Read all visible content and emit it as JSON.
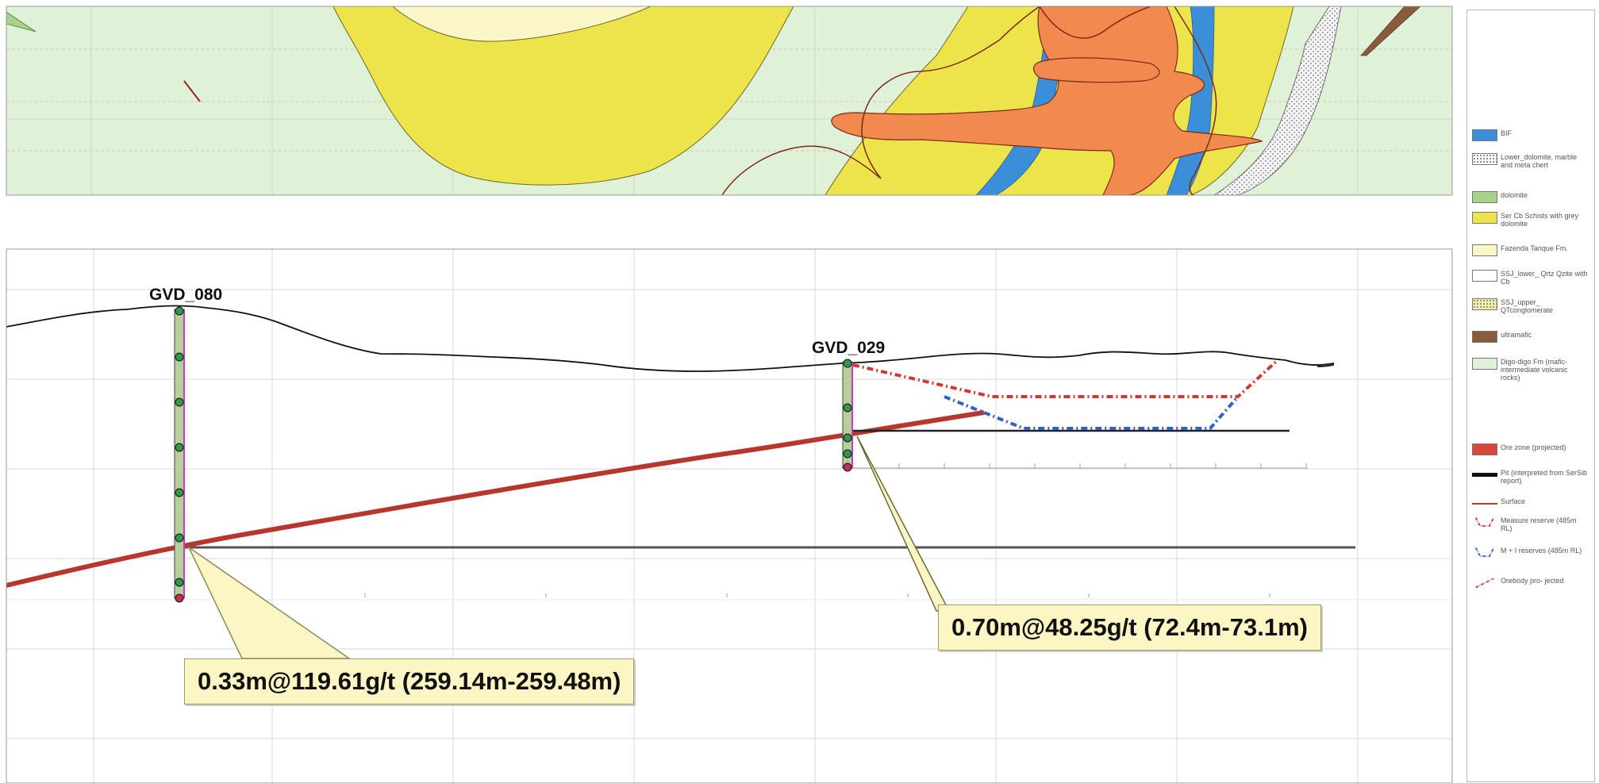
{
  "drillholes": [
    {
      "id": "GVD_080"
    },
    {
      "id": "GVD_029"
    }
  ],
  "intercepts": [
    {
      "text": "0.33m@119.61g/t (259.14m-259.48m)"
    },
    {
      "text": "0.70m@48.25g/t (72.4m-73.1m)"
    }
  ],
  "legend": {
    "items": [
      {
        "label": "BIF",
        "color": "#3a8fd8",
        "kind": "box"
      },
      {
        "label": "Lower_dolomite, marble and meta chert",
        "color": "#ffffff",
        "kind": "dotted"
      },
      {
        "label": "dolomite",
        "color": "#a8d18a",
        "kind": "box"
      },
      {
        "label": "Ser Cb Schists with grey dolomite",
        "color": "#ede34a",
        "kind": "box"
      },
      {
        "label": "Fazenda Tanque Fm.",
        "color": "#fbf6c8",
        "kind": "box"
      },
      {
        "label": "SSJ_lower_ Qrtz Qzite with Cb",
        "color": "#ffffff",
        "kind": "box"
      },
      {
        "label": "SSJ_upper_ QTconglomerate",
        "color": "#f4efaa",
        "kind": "dotted"
      },
      {
        "label": "ultramafic",
        "color": "#8a5a3c",
        "kind": "box"
      },
      {
        "label": "Digo-digo Fm (mafic-intermediate volcanic rocks)",
        "color": "#dff2d8",
        "kind": "box"
      },
      {
        "label": "Ore zone (projected)",
        "color": "#d8473a",
        "kind": "box"
      },
      {
        "label": "Pit (interpreted from SerSib report)",
        "color": "#111111",
        "kind": "bar"
      },
      {
        "label": "Surface",
        "color": "#c0392b",
        "kind": "line"
      },
      {
        "label": "Measure reserve (485m RL)",
        "color": "#d03a2e",
        "kind": "dashv"
      },
      {
        "label": "M + I reserves (485m RL)",
        "color": "#2f62c8",
        "kind": "dashv"
      },
      {
        "label": "Orebody pro- jected",
        "color": "#d03a2e",
        "kind": "dashdiag"
      }
    ]
  }
}
